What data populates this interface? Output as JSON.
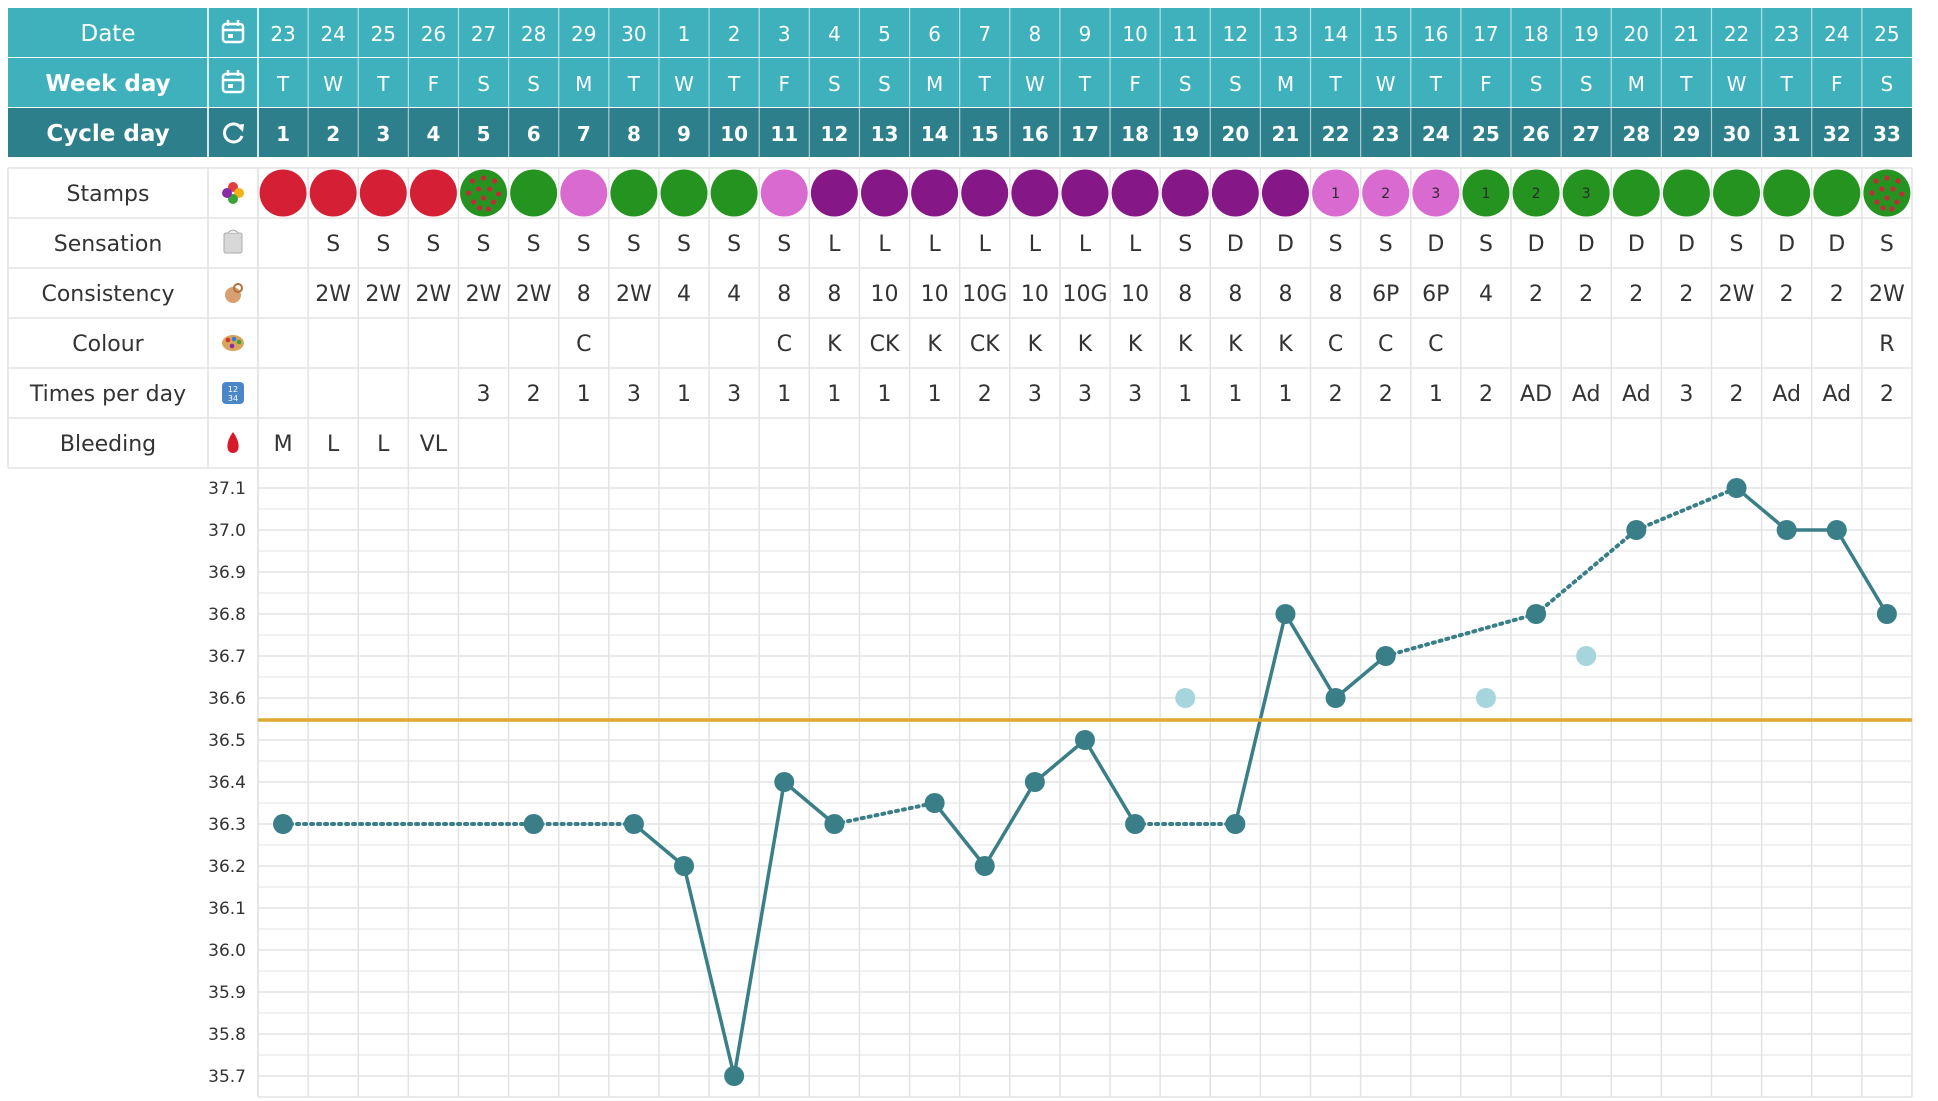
{
  "header_rows": [
    {
      "key": "date",
      "label": "Date",
      "icon": "calendar-icon",
      "bold": false
    },
    {
      "key": "weekday",
      "label": "Week day",
      "icon": "calendar-icon",
      "bold": true
    },
    {
      "key": "cycleday",
      "label": "Cycle day",
      "icon": "refresh-icon",
      "bold": true
    }
  ],
  "dates": [
    "23",
    "24",
    "25",
    "26",
    "27",
    "28",
    "29",
    "30",
    "1",
    "2",
    "3",
    "4",
    "5",
    "6",
    "7",
    "8",
    "9",
    "10",
    "11",
    "12",
    "13",
    "14",
    "15",
    "16",
    "17",
    "18",
    "19",
    "20",
    "21",
    "22",
    "23",
    "24",
    "25"
  ],
  "weekdays": [
    "T",
    "W",
    "T",
    "F",
    "S",
    "S",
    "M",
    "T",
    "W",
    "T",
    "F",
    "S",
    "S",
    "M",
    "T",
    "W",
    "T",
    "F",
    "S",
    "S",
    "M",
    "T",
    "W",
    "T",
    "F",
    "S",
    "S",
    "M",
    "T",
    "W",
    "T",
    "F",
    "S"
  ],
  "cycle_days": [
    "1",
    "2",
    "3",
    "4",
    "5",
    "6",
    "7",
    "8",
    "9",
    "10",
    "11",
    "12",
    "13",
    "14",
    "15",
    "16",
    "17",
    "18",
    "19",
    "20",
    "21",
    "22",
    "23",
    "24",
    "25",
    "26",
    "27",
    "28",
    "29",
    "30",
    "31",
    "32",
    "33"
  ],
  "obs_rows": [
    {
      "key": "stamps",
      "label": "Stamps",
      "icon": "flower-icon"
    },
    {
      "key": "sensation",
      "label": "Sensation",
      "icon": "tissue-icon"
    },
    {
      "key": "consistency",
      "label": "Consistency",
      "icon": "hand-icon"
    },
    {
      "key": "colour",
      "label": "Colour",
      "icon": "palette-icon"
    },
    {
      "key": "times",
      "label": "Times per day",
      "icon": "number-pad-icon"
    },
    {
      "key": "bleeding",
      "label": "Bleeding",
      "icon": "blood-drop-icon"
    }
  ],
  "stamps": [
    {
      "type": "red",
      "n": ""
    },
    {
      "type": "red",
      "n": ""
    },
    {
      "type": "red",
      "n": ""
    },
    {
      "type": "red",
      "n": ""
    },
    {
      "type": "green-dotted",
      "n": ""
    },
    {
      "type": "green",
      "n": ""
    },
    {
      "type": "pink",
      "n": ""
    },
    {
      "type": "green",
      "n": ""
    },
    {
      "type": "green",
      "n": ""
    },
    {
      "type": "green",
      "n": ""
    },
    {
      "type": "pink",
      "n": ""
    },
    {
      "type": "purple",
      "n": ""
    },
    {
      "type": "purple",
      "n": ""
    },
    {
      "type": "purple",
      "n": ""
    },
    {
      "type": "purple",
      "n": ""
    },
    {
      "type": "purple",
      "n": ""
    },
    {
      "type": "purple",
      "n": ""
    },
    {
      "type": "purple",
      "n": ""
    },
    {
      "type": "purple",
      "n": ""
    },
    {
      "type": "purple",
      "n": ""
    },
    {
      "type": "purple",
      "n": ""
    },
    {
      "type": "pink",
      "n": "1"
    },
    {
      "type": "pink",
      "n": "2"
    },
    {
      "type": "pink",
      "n": "3"
    },
    {
      "type": "green",
      "n": "1"
    },
    {
      "type": "green",
      "n": "2"
    },
    {
      "type": "green",
      "n": "3"
    },
    {
      "type": "green",
      "n": ""
    },
    {
      "type": "green",
      "n": ""
    },
    {
      "type": "green",
      "n": ""
    },
    {
      "type": "green",
      "n": ""
    },
    {
      "type": "green",
      "n": ""
    },
    {
      "type": "green-dotted",
      "n": ""
    }
  ],
  "sensation": [
    "",
    "S",
    "S",
    "S",
    "S",
    "S",
    "S",
    "S",
    "S",
    "S",
    "S",
    "L",
    "L",
    "L",
    "L",
    "L",
    "L",
    "L",
    "S",
    "D",
    "D",
    "S",
    "S",
    "D",
    "S",
    "D",
    "D",
    "D",
    "D",
    "S",
    "D",
    "D",
    "S"
  ],
  "consistency": [
    "",
    "2W",
    "2W",
    "2W",
    "2W",
    "2W",
    "8",
    "2W",
    "4",
    "4",
    "8",
    "8",
    "10",
    "10",
    "10G",
    "10",
    "10G",
    "10",
    "8",
    "8",
    "8",
    "8",
    "6P",
    "6P",
    "4",
    "2",
    "2",
    "2",
    "2",
    "2W",
    "2",
    "2",
    "2W"
  ],
  "colour": [
    "",
    "",
    "",
    "",
    "",
    "",
    "C",
    "",
    "",
    "",
    "C",
    "K",
    "CK",
    "K",
    "CK",
    "K",
    "K",
    "K",
    "K",
    "K",
    "K",
    "C",
    "C",
    "C",
    "",
    "",
    "",
    "",
    "",
    "",
    "",
    "",
    "R"
  ],
  "times": [
    "",
    "",
    "",
    "",
    "3",
    "2",
    "1",
    "3",
    "1",
    "3",
    "1",
    "1",
    "1",
    "1",
    "2",
    "3",
    "3",
    "3",
    "1",
    "1",
    "1",
    "2",
    "2",
    "1",
    "2",
    "AD",
    "Ad",
    "Ad",
    "3",
    "2",
    "Ad",
    "Ad",
    "2"
  ],
  "bleeding": [
    "M",
    "L",
    "L",
    "VL",
    "",
    "",
    "",
    "",
    "",
    "",
    "",
    "",
    "",
    "",
    "",
    "",
    "",
    "",
    "",
    "",
    "",
    "",
    "",
    "",
    "",
    "",
    "",
    "",
    "",
    "",
    "",
    "",
    ""
  ],
  "chart_data": {
    "type": "line",
    "x": [
      1,
      2,
      3,
      4,
      5,
      6,
      7,
      8,
      9,
      10,
      11,
      12,
      13,
      14,
      15,
      16,
      17,
      18,
      19,
      20,
      21,
      22,
      23,
      24,
      25,
      26,
      27,
      28,
      29,
      30,
      31,
      32,
      33
    ],
    "series": [
      {
        "values": [
          36.3,
          null,
          null,
          null,
          null,
          36.3,
          null,
          36.3,
          36.2,
          35.7,
          36.4,
          36.3,
          null,
          36.35,
          36.2,
          36.4,
          36.5,
          36.3,
          null,
          36.3,
          36.8,
          36.6,
          36.7,
          null,
          null,
          36.8,
          null,
          37.0,
          null,
          37.1,
          37.0,
          37.0,
          36.8
        ]
      }
    ],
    "excluded_points": [
      {
        "x": 19,
        "y": 36.6
      },
      {
        "x": 25,
        "y": 36.6
      },
      {
        "x": 27,
        "y": 36.7
      }
    ],
    "coverline": 36.55,
    "yticks": [
      "37.1",
      "37.0",
      "36.9",
      "36.8",
      "36.7",
      "36.6",
      "36.5",
      "36.4",
      "36.3",
      "36.2",
      "36.1",
      "36.0",
      "35.9",
      "35.8",
      "35.7"
    ],
    "ylim": [
      35.7,
      37.1
    ],
    "grid": true
  },
  "colors": {
    "header_bg": "#3fb1bc",
    "header_dark": "#2d7f8b",
    "line": "#3a7f88",
    "excluded": "#a7d5dd",
    "coverline": "#e0a82e",
    "grid": "#e3e3e3",
    "red": "#d41f35",
    "green": "#25931f",
    "pink": "#d96ad0",
    "purple": "#861786",
    "dot_red": "#c22c3a"
  }
}
